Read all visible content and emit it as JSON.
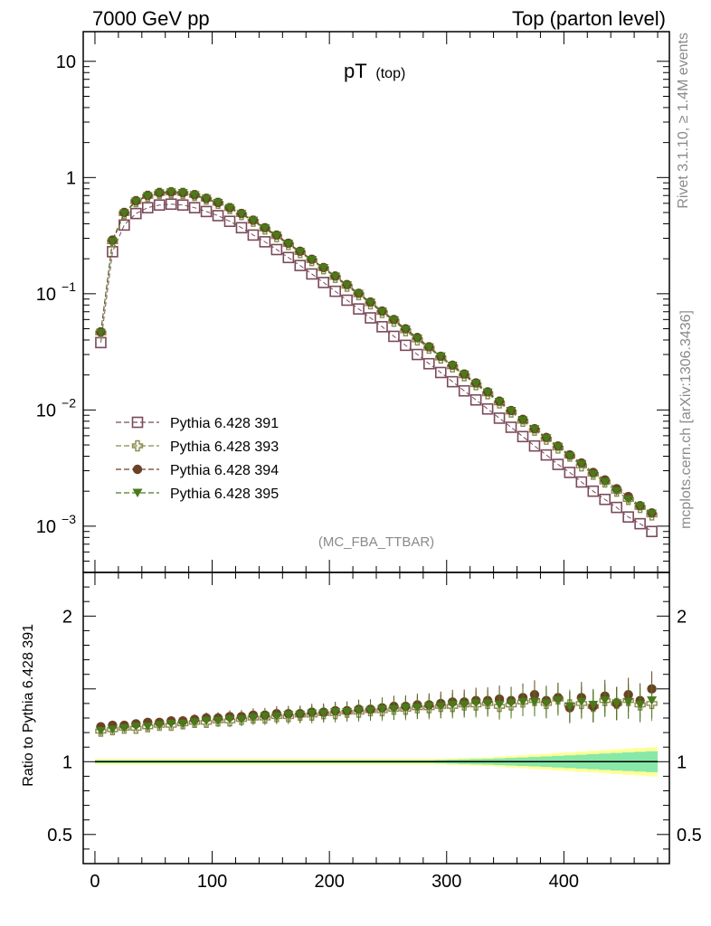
{
  "header": {
    "left_title": "7000 GeV pp",
    "right_title": "Top (parton level)"
  },
  "side_labels": {
    "rivet": "Rivet 3.1.10, ≥ 1.4M events",
    "mcplots": "mcplots.cern.ch [arXiv:1306.3436]"
  },
  "chart_data": [
    {
      "type": "scatter",
      "panel": "main",
      "title": "pT",
      "title_suffix": "(top)",
      "analysis_label": "(MC_FBA_TTBAR)",
      "xlabel": "",
      "ylabel": "",
      "xlim": [
        -10,
        490
      ],
      "ylim": [
        0.0004,
        18
      ],
      "log_y": true,
      "y_ticks": [
        {
          "value": 10,
          "label": "10"
        },
        {
          "value": 1,
          "label": "1"
        },
        {
          "value": 0.1,
          "label": "10",
          "exp": "−1"
        },
        {
          "value": 0.01,
          "label": "10",
          "exp": "−2"
        },
        {
          "value": 0.001,
          "label": "10",
          "exp": "−3"
        }
      ],
      "legend_position": "lower-left",
      "x": [
        5,
        15,
        25,
        35,
        45,
        55,
        65,
        75,
        85,
        95,
        105,
        115,
        125,
        135,
        145,
        155,
        165,
        175,
        185,
        195,
        205,
        215,
        225,
        235,
        245,
        255,
        265,
        275,
        285,
        295,
        305,
        315,
        325,
        335,
        345,
        355,
        365,
        375,
        385,
        395,
        405,
        415,
        425,
        435,
        445,
        455,
        465,
        475
      ],
      "series": [
        {
          "name": "Pythia 6.428 391",
          "marker": "open-square",
          "color": "#7a4a5a",
          "values": [
            0.038,
            0.23,
            0.39,
            0.49,
            0.55,
            0.58,
            0.59,
            0.58,
            0.55,
            0.51,
            0.47,
            0.42,
            0.37,
            0.32,
            0.28,
            0.24,
            0.205,
            0.175,
            0.148,
            0.125,
            0.105,
            0.088,
            0.074,
            0.062,
            0.052,
            0.043,
            0.036,
            0.03,
            0.025,
            0.021,
            0.0175,
            0.0146,
            0.0122,
            0.0102,
            0.0085,
            0.0071,
            0.0059,
            0.0049,
            0.0041,
            0.0034,
            0.0029,
            0.0024,
            0.002,
            0.0017,
            0.00145,
            0.0012,
            0.00105,
            0.0009
          ]
        },
        {
          "name": "Pythia 6.428 393",
          "marker": "open-cross",
          "color": "#8b8b4f",
          "values": [
            0.046,
            0.28,
            0.49,
            0.62,
            0.69,
            0.73,
            0.74,
            0.73,
            0.7,
            0.65,
            0.6,
            0.54,
            0.48,
            0.42,
            0.36,
            0.31,
            0.265,
            0.226,
            0.193,
            0.164,
            0.138,
            0.116,
            0.098,
            0.082,
            0.069,
            0.058,
            0.048,
            0.04,
            0.034,
            0.028,
            0.0235,
            0.0197,
            0.0165,
            0.0138,
            0.0115,
            0.0096,
            0.008,
            0.0067,
            0.0056,
            0.0047,
            0.004,
            0.0033,
            0.0028,
            0.0024,
            0.002,
            0.0017,
            0.00145,
            0.00125
          ]
        },
        {
          "name": "Pythia 6.428 394",
          "marker": "filled-circle",
          "color": "#6b4226",
          "values": [
            0.047,
            0.29,
            0.5,
            0.63,
            0.7,
            0.74,
            0.75,
            0.74,
            0.71,
            0.66,
            0.61,
            0.55,
            0.49,
            0.43,
            0.37,
            0.32,
            0.272,
            0.232,
            0.198,
            0.168,
            0.142,
            0.12,
            0.101,
            0.085,
            0.071,
            0.06,
            0.05,
            0.042,
            0.035,
            0.029,
            0.0243,
            0.0204,
            0.0171,
            0.0143,
            0.0119,
            0.0099,
            0.0083,
            0.0069,
            0.0058,
            0.0049,
            0.0041,
            0.0035,
            0.0029,
            0.0025,
            0.0021,
            0.0018,
            0.0015,
            0.0013
          ]
        },
        {
          "name": "Pythia 6.428 395",
          "marker": "filled-triangle-down",
          "color": "#4a7a1a",
          "values": [
            0.046,
            0.28,
            0.49,
            0.62,
            0.69,
            0.73,
            0.745,
            0.735,
            0.705,
            0.655,
            0.605,
            0.545,
            0.485,
            0.425,
            0.365,
            0.315,
            0.268,
            0.229,
            0.195,
            0.166,
            0.14,
            0.118,
            0.0995,
            0.0835,
            0.07,
            0.059,
            0.049,
            0.041,
            0.0345,
            0.0288,
            0.024,
            0.0201,
            0.0168,
            0.0141,
            0.0117,
            0.0098,
            0.0081,
            0.0068,
            0.0057,
            0.0048,
            0.004,
            0.0034,
            0.0028,
            0.0024,
            0.002,
            0.0017,
            0.00148,
            0.00128
          ]
        }
      ]
    },
    {
      "type": "scatter",
      "panel": "ratio",
      "ylabel": "Ratio to Pythia 6.428 391",
      "xlabel": "",
      "xlim": [
        -10,
        490
      ],
      "ylim": [
        0.3,
        2.3
      ],
      "y_ticks": [
        {
          "value": 2,
          "label": "2"
        },
        {
          "value": 1,
          "label": "1"
        },
        {
          "value": 0.5,
          "label": "0.5"
        }
      ],
      "x_ticks": [
        {
          "value": 0,
          "label": "0"
        },
        {
          "value": 100,
          "label": "100"
        },
        {
          "value": 200,
          "label": "200"
        },
        {
          "value": 300,
          "label": "300"
        },
        {
          "value": 400,
          "label": "400"
        }
      ],
      "x": [
        5,
        15,
        25,
        35,
        45,
        55,
        65,
        75,
        85,
        95,
        105,
        115,
        125,
        135,
        145,
        155,
        165,
        175,
        185,
        195,
        205,
        215,
        225,
        235,
        245,
        255,
        265,
        275,
        285,
        295,
        305,
        315,
        325,
        335,
        345,
        355,
        365,
        375,
        385,
        395,
        405,
        415,
        425,
        435,
        445,
        455,
        465,
        475
      ],
      "band_upper_yellow": [
        1.02,
        1.02,
        1.02,
        1.02,
        1.02,
        1.02,
        1.02,
        1.02,
        1.02,
        1.02,
        1.02,
        1.02,
        1.02,
        1.02,
        1.02,
        1.02,
        1.02,
        1.02,
        1.02,
        1.02,
        1.02,
        1.02,
        1.02,
        1.02,
        1.02,
        1.02,
        1.02,
        1.02,
        1.02,
        1.02,
        1.022,
        1.025,
        1.028,
        1.03,
        1.035,
        1.04,
        1.045,
        1.05,
        1.055,
        1.06,
        1.065,
        1.07,
        1.075,
        1.08,
        1.085,
        1.09,
        1.095,
        1.1
      ],
      "band_upper_green": [
        1.01,
        1.01,
        1.01,
        1.01,
        1.01,
        1.01,
        1.01,
        1.01,
        1.01,
        1.01,
        1.01,
        1.01,
        1.01,
        1.01,
        1.01,
        1.01,
        1.01,
        1.01,
        1.01,
        1.01,
        1.01,
        1.01,
        1.01,
        1.01,
        1.01,
        1.01,
        1.01,
        1.01,
        1.01,
        1.012,
        1.014,
        1.016,
        1.018,
        1.02,
        1.023,
        1.026,
        1.029,
        1.032,
        1.036,
        1.04,
        1.044,
        1.048,
        1.052,
        1.056,
        1.06,
        1.064,
        1.068,
        1.072
      ],
      "series": [
        {
          "name": "Pythia 6.428 393",
          "marker": "open-cross",
          "color": "#8b8b4f",
          "values": [
            1.21,
            1.22,
            1.23,
            1.23,
            1.24,
            1.25,
            1.25,
            1.26,
            1.27,
            1.27,
            1.28,
            1.28,
            1.29,
            1.3,
            1.3,
            1.31,
            1.31,
            1.32,
            1.32,
            1.33,
            1.33,
            1.34,
            1.34,
            1.35,
            1.35,
            1.36,
            1.36,
            1.37,
            1.37,
            1.38,
            1.38,
            1.39,
            1.39,
            1.4,
            1.38,
            1.39,
            1.41,
            1.42,
            1.4,
            1.43,
            1.39,
            1.4,
            1.38,
            1.42,
            1.4,
            1.42,
            1.39,
            1.4
          ]
        },
        {
          "name": "Pythia 6.428 394",
          "marker": "filled-circle",
          "color": "#6b4226",
          "values": [
            1.24,
            1.25,
            1.25,
            1.26,
            1.27,
            1.27,
            1.28,
            1.28,
            1.29,
            1.3,
            1.3,
            1.31,
            1.31,
            1.32,
            1.32,
            1.33,
            1.33,
            1.33,
            1.34,
            1.34,
            1.35,
            1.35,
            1.36,
            1.36,
            1.37,
            1.38,
            1.38,
            1.39,
            1.39,
            1.4,
            1.41,
            1.41,
            1.42,
            1.42,
            1.43,
            1.42,
            1.44,
            1.46,
            1.42,
            1.44,
            1.37,
            1.44,
            1.38,
            1.45,
            1.4,
            1.46,
            1.42,
            1.5
          ]
        },
        {
          "name": "Pythia 6.428 395",
          "marker": "filled-triangle-down",
          "color": "#4a7a1a",
          "values": [
            1.21,
            1.22,
            1.23,
            1.24,
            1.24,
            1.25,
            1.26,
            1.26,
            1.27,
            1.28,
            1.28,
            1.29,
            1.29,
            1.3,
            1.31,
            1.31,
            1.32,
            1.32,
            1.33,
            1.33,
            1.34,
            1.34,
            1.35,
            1.35,
            1.36,
            1.36,
            1.37,
            1.37,
            1.38,
            1.38,
            1.39,
            1.39,
            1.4,
            1.4,
            1.39,
            1.4,
            1.41,
            1.41,
            1.4,
            1.42,
            1.38,
            1.41,
            1.39,
            1.42,
            1.4,
            1.41,
            1.39,
            1.42
          ]
        }
      ]
    }
  ]
}
